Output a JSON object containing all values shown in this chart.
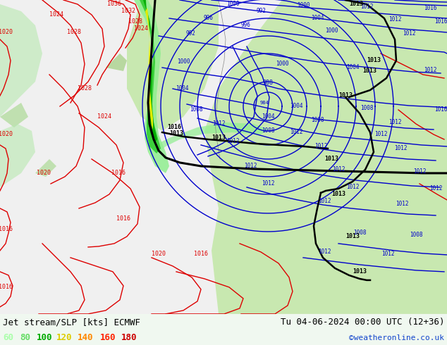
{
  "title_left": "Jet stream/SLP [kts] ECMWF",
  "title_right": "Tu 04-06-2024 00:00 UTC (12+36)",
  "credit": "©weatheronline.co.uk",
  "legend_values": [
    "60",
    "80",
    "100",
    "120",
    "140",
    "160",
    "180"
  ],
  "legend_colors": [
    "#aaffaa",
    "#66dd66",
    "#00aa00",
    "#ddcc00",
    "#ff8800",
    "#ff2200",
    "#cc0000"
  ],
  "map_bg_light": "#f0f8f0",
  "map_bg_green": "#c8e8c0",
  "map_bg_green2": "#a8d8a0",
  "bottom_bar_color": "#ffffff",
  "title_fontsize": 9,
  "legend_fontsize": 9,
  "credit_color": "#1144cc",
  "figsize": [
    6.34,
    4.9
  ],
  "dpi": 100,
  "red_line_color": "#dd0000",
  "blue_line_color": "#0000cc",
  "black_line_color": "#000000"
}
